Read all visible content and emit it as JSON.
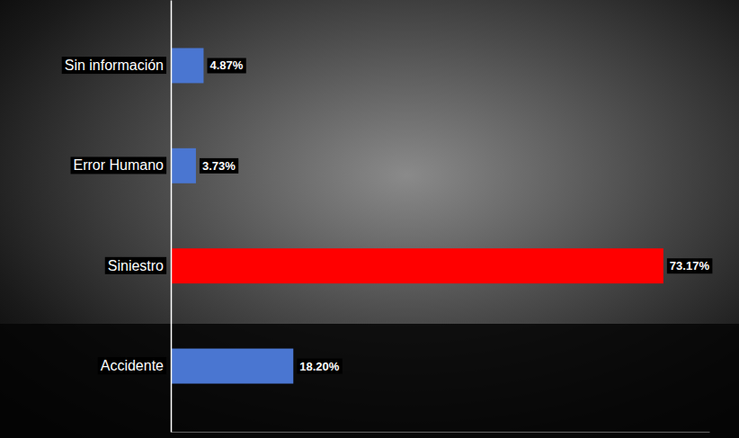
{
  "chart_data": {
    "type": "bar",
    "orientation": "horizontal",
    "categories": [
      "Sin información",
      "Error Humano",
      "Siniestro",
      "Accidente"
    ],
    "values": [
      4.87,
      3.73,
      73.17,
      18.2
    ],
    "value_labels": [
      "4.87%",
      "3.73%",
      "73.17%",
      "18.20%"
    ],
    "colors": [
      "#4a76d1",
      "#4a76d1",
      "#ff0000",
      "#4a76d1"
    ],
    "xlim": [
      0,
      80
    ],
    "data_labels": true,
    "tick_labels": "y",
    "grid": false
  }
}
